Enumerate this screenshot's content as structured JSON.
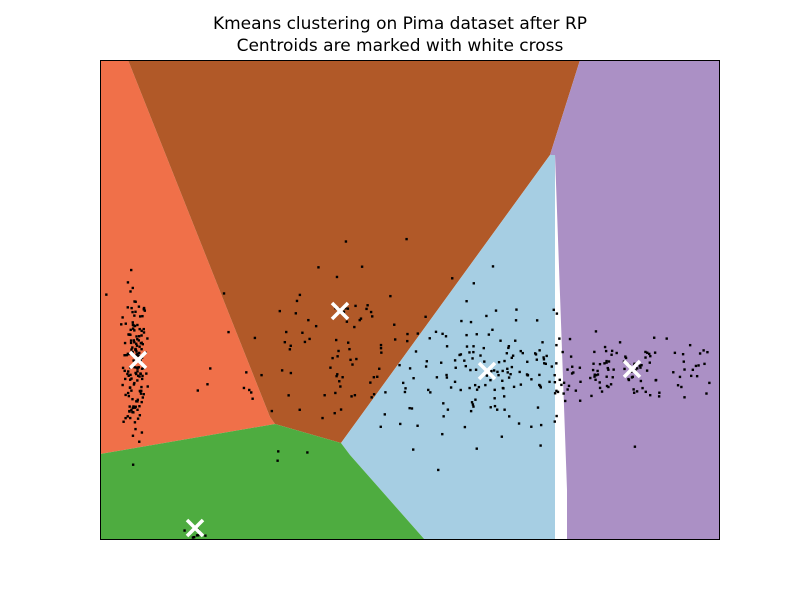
{
  "chart_data": {
    "type": "scatter",
    "title": "Kmeans clustering on Pima dataset after RP",
    "subtitle": "Centroids are marked with white cross",
    "xlabel": "",
    "ylabel": "",
    "xlim": [
      0,
      620
    ],
    "ylim": [
      0,
      480
    ],
    "axes_ticks_visible": false,
    "grid": false,
    "legend": "none",
    "region_colors": [
      "#f07049",
      "#b15928",
      "#a6cee3",
      "#ab90c5",
      "#4eac40"
    ],
    "centroid_color": "#ffffff",
    "point_color": "#000000",
    "centroids": [
      {
        "x": 38,
        "y": 180
      },
      {
        "x": 240,
        "y": 229
      },
      {
        "x": 387,
        "y": 169
      },
      {
        "x": 532,
        "y": 171
      },
      {
        "x": 95,
        "y": 12
      }
    ],
    "decision_regions": [
      {
        "color": "#f07049",
        "polygon": [
          [
            0,
            480
          ],
          [
            28,
            480
          ],
          [
            170,
            123
          ],
          [
            175,
            116
          ],
          [
            0,
            86
          ]
        ]
      },
      {
        "color": "#b15928",
        "polygon": [
          [
            28,
            480
          ],
          [
            480,
            480
          ],
          [
            450,
            385
          ],
          [
            241,
            97
          ],
          [
            175,
            116
          ],
          [
            170,
            123
          ]
        ]
      },
      {
        "color": "#a6cee3",
        "polygon": [
          [
            241,
            97
          ],
          [
            450,
            385
          ],
          [
            455,
            385
          ],
          [
            455,
            -1
          ],
          [
            325,
            0
          ],
          [
            250,
            85
          ]
        ]
      },
      {
        "color": "#ab90c5",
        "polygon": [
          [
            480,
            480
          ],
          [
            620,
            480
          ],
          [
            620,
            0
          ],
          [
            467,
            0
          ],
          [
            467,
            50
          ],
          [
            455,
            385
          ],
          [
            450,
            385
          ]
        ]
      },
      {
        "color": "#4eac40",
        "polygon": [
          [
            0,
            86
          ],
          [
            175,
            116
          ],
          [
            241,
            97
          ],
          [
            250,
            85
          ],
          [
            325,
            0
          ],
          [
            0,
            0
          ]
        ]
      }
    ],
    "cluster_points": [
      {
        "cx": 35,
        "cy": 175,
        "sx": 6,
        "sy": 38,
        "n": 150
      },
      {
        "cx": 250,
        "cy": 190,
        "sx": 70,
        "sy": 48,
        "n": 110
      },
      {
        "cx": 400,
        "cy": 165,
        "sx": 60,
        "sy": 28,
        "n": 150
      },
      {
        "cx": 540,
        "cy": 168,
        "sx": 45,
        "sy": 14,
        "n": 100
      },
      {
        "cx": 95,
        "cy": 6,
        "sx": 8,
        "sy": 3,
        "n": 10
      }
    ]
  }
}
